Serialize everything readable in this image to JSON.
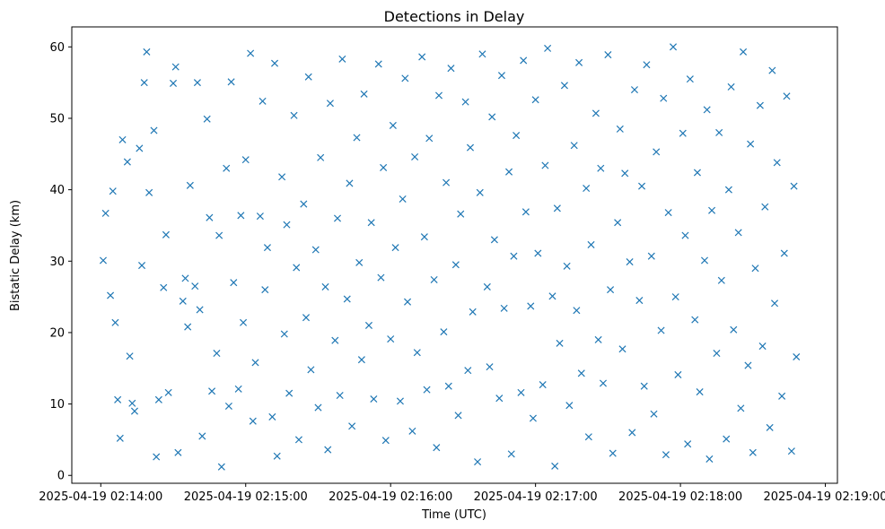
{
  "chart_data": {
    "type": "scatter",
    "title": "Detections in Delay",
    "xlabel": "Time (UTC)",
    "ylabel": "Bistatic Delay (km)",
    "x_ticks": [
      "2025-04-19 02:14:00",
      "2025-04-19 02:15:00",
      "2025-04-19 02:16:00",
      "2025-04-19 02:17:00",
      "2025-04-19 02:18:00",
      "2025-04-19 02:19:00"
    ],
    "y_ticks": [
      "0",
      "10",
      "20",
      "30",
      "40",
      "50",
      "60"
    ],
    "xlim": [
      "2025-04-19 02:13:48",
      "2025-04-19 02:19:05"
    ],
    "ylim": [
      -1.1,
      62.8
    ],
    "grid": false,
    "marker": "x",
    "color": "#1f77b4",
    "series": [
      {
        "points": [
          [
            "02:14:01",
            30.1
          ],
          [
            "02:14:02",
            36.7
          ],
          [
            "02:14:04",
            25.2
          ],
          [
            "02:14:05",
            39.8
          ],
          [
            "02:14:06",
            21.4
          ],
          [
            "02:14:07",
            10.6
          ],
          [
            "02:14:08",
            5.2
          ],
          [
            "02:14:09",
            47.0
          ],
          [
            "02:14:11",
            43.9
          ],
          [
            "02:14:12",
            16.7
          ],
          [
            "02:14:13",
            10.1
          ],
          [
            "02:14:14",
            9.0
          ],
          [
            "02:14:16",
            45.8
          ],
          [
            "02:14:17",
            29.4
          ],
          [
            "02:14:18",
            55.0
          ],
          [
            "02:14:19",
            59.3
          ],
          [
            "02:14:20",
            39.6
          ],
          [
            "02:14:22",
            48.3
          ],
          [
            "02:14:23",
            2.6
          ],
          [
            "02:14:24",
            10.6
          ],
          [
            "02:14:26",
            26.3
          ],
          [
            "02:14:27",
            33.7
          ],
          [
            "02:14:28",
            11.6
          ],
          [
            "02:14:30",
            54.9
          ],
          [
            "02:14:31",
            57.2
          ],
          [
            "02:14:32",
            3.2
          ],
          [
            "02:14:34",
            24.4
          ],
          [
            "02:14:35",
            27.6
          ],
          [
            "02:14:36",
            20.8
          ],
          [
            "02:14:37",
            40.6
          ],
          [
            "02:14:39",
            26.5
          ],
          [
            "02:14:40",
            55.0
          ],
          [
            "02:14:41",
            23.2
          ],
          [
            "02:14:42",
            5.5
          ],
          [
            "02:14:44",
            49.9
          ],
          [
            "02:14:45",
            36.1
          ],
          [
            "02:14:46",
            11.8
          ],
          [
            "02:14:48",
            17.1
          ],
          [
            "02:14:49",
            33.6
          ],
          [
            "02:14:50",
            1.2
          ],
          [
            "02:14:52",
            43.0
          ],
          [
            "02:14:53",
            9.7
          ],
          [
            "02:14:54",
            55.1
          ],
          [
            "02:14:55",
            27.0
          ],
          [
            "02:14:57",
            12.1
          ],
          [
            "02:14:58",
            36.4
          ],
          [
            "02:14:59",
            21.4
          ],
          [
            "02:15:00",
            44.2
          ],
          [
            "02:15:02",
            59.1
          ],
          [
            "02:15:03",
            7.6
          ],
          [
            "02:15:04",
            15.8
          ],
          [
            "02:15:06",
            36.3
          ],
          [
            "02:15:07",
            52.4
          ],
          [
            "02:15:08",
            26.0
          ],
          [
            "02:15:09",
            31.9
          ],
          [
            "02:15:11",
            8.2
          ],
          [
            "02:15:12",
            57.7
          ],
          [
            "02:15:13",
            2.7
          ],
          [
            "02:15:15",
            41.8
          ],
          [
            "02:15:16",
            19.8
          ],
          [
            "02:15:17",
            35.1
          ],
          [
            "02:15:18",
            11.5
          ],
          [
            "02:15:20",
            50.4
          ],
          [
            "02:15:21",
            29.1
          ],
          [
            "02:15:22",
            5.0
          ],
          [
            "02:15:24",
            38.0
          ],
          [
            "02:15:25",
            22.1
          ],
          [
            "02:15:26",
            55.8
          ],
          [
            "02:15:27",
            14.8
          ],
          [
            "02:15:29",
            31.6
          ],
          [
            "02:15:30",
            9.5
          ],
          [
            "02:15:31",
            44.5
          ],
          [
            "02:15:33",
            26.4
          ],
          [
            "02:15:34",
            3.6
          ],
          [
            "02:15:35",
            52.1
          ],
          [
            "02:15:37",
            18.9
          ],
          [
            "02:15:38",
            36.0
          ],
          [
            "02:15:39",
            11.2
          ],
          [
            "02:15:40",
            58.3
          ],
          [
            "02:15:42",
            24.7
          ],
          [
            "02:15:43",
            40.9
          ],
          [
            "02:15:44",
            6.9
          ],
          [
            "02:15:46",
            47.3
          ],
          [
            "02:15:47",
            29.8
          ],
          [
            "02:15:48",
            16.2
          ],
          [
            "02:15:49",
            53.4
          ],
          [
            "02:15:51",
            21.0
          ],
          [
            "02:15:52",
            35.4
          ],
          [
            "02:15:53",
            10.7
          ],
          [
            "02:15:55",
            57.6
          ],
          [
            "02:15:56",
            27.7
          ],
          [
            "02:15:57",
            43.1
          ],
          [
            "02:15:58",
            4.9
          ],
          [
            "02:16:00",
            19.1
          ],
          [
            "02:16:01",
            49.0
          ],
          [
            "02:16:02",
            31.9
          ],
          [
            "02:16:04",
            10.4
          ],
          [
            "02:16:05",
            38.7
          ],
          [
            "02:16:06",
            55.6
          ],
          [
            "02:16:07",
            24.3
          ],
          [
            "02:16:09",
            6.2
          ],
          [
            "02:16:10",
            44.6
          ],
          [
            "02:16:11",
            17.2
          ],
          [
            "02:16:13",
            58.6
          ],
          [
            "02:16:14",
            33.4
          ],
          [
            "02:16:15",
            12.0
          ],
          [
            "02:16:16",
            47.2
          ],
          [
            "02:16:18",
            27.4
          ],
          [
            "02:16:19",
            3.9
          ],
          [
            "02:16:20",
            53.2
          ],
          [
            "02:16:22",
            20.1
          ],
          [
            "02:16:23",
            41.0
          ],
          [
            "02:16:24",
            12.5
          ],
          [
            "02:16:25",
            57.0
          ],
          [
            "02:16:27",
            29.5
          ],
          [
            "02:16:28",
            8.4
          ],
          [
            "02:16:29",
            36.6
          ],
          [
            "02:16:31",
            52.3
          ],
          [
            "02:16:32",
            14.7
          ],
          [
            "02:16:33",
            45.9
          ],
          [
            "02:16:34",
            22.9
          ],
          [
            "02:16:36",
            1.9
          ],
          [
            "02:16:37",
            39.6
          ],
          [
            "02:16:38",
            59.0
          ],
          [
            "02:16:40",
            26.4
          ],
          [
            "02:16:41",
            15.2
          ],
          [
            "02:16:42",
            50.2
          ],
          [
            "02:16:43",
            33.0
          ],
          [
            "02:16:45",
            10.8
          ],
          [
            "02:16:46",
            56.0
          ],
          [
            "02:16:47",
            23.4
          ],
          [
            "02:16:49",
            42.5
          ],
          [
            "02:16:50",
            3.0
          ],
          [
            "02:16:51",
            30.7
          ],
          [
            "02:16:52",
            47.6
          ],
          [
            "02:16:54",
            11.6
          ],
          [
            "02:16:55",
            58.1
          ],
          [
            "02:16:56",
            36.9
          ],
          [
            "02:16:58",
            23.7
          ],
          [
            "02:16:59",
            8.0
          ],
          [
            "02:17:00",
            52.6
          ],
          [
            "02:17:01",
            31.1
          ],
          [
            "02:17:03",
            12.7
          ],
          [
            "02:17:04",
            43.4
          ],
          [
            "02:17:05",
            59.8
          ],
          [
            "02:17:07",
            25.1
          ],
          [
            "02:17:08",
            1.3
          ],
          [
            "02:17:09",
            37.4
          ],
          [
            "02:17:10",
            18.5
          ],
          [
            "02:17:12",
            54.6
          ],
          [
            "02:17:13",
            29.3
          ],
          [
            "02:17:14",
            9.8
          ],
          [
            "02:17:16",
            46.2
          ],
          [
            "02:17:17",
            23.1
          ],
          [
            "02:17:18",
            57.8
          ],
          [
            "02:17:19",
            14.3
          ],
          [
            "02:17:21",
            40.2
          ],
          [
            "02:17:22",
            5.4
          ],
          [
            "02:17:23",
            32.3
          ],
          [
            "02:17:25",
            50.7
          ],
          [
            "02:17:26",
            19.0
          ],
          [
            "02:17:27",
            43.0
          ],
          [
            "02:17:28",
            12.9
          ],
          [
            "02:17:30",
            58.9
          ],
          [
            "02:17:31",
            26.0
          ],
          [
            "02:17:32",
            3.1
          ],
          [
            "02:17:34",
            35.4
          ],
          [
            "02:17:35",
            48.5
          ],
          [
            "02:17:36",
            17.7
          ],
          [
            "02:17:37",
            42.3
          ],
          [
            "02:17:39",
            29.9
          ],
          [
            "02:17:40",
            6.0
          ],
          [
            "02:17:41",
            54.0
          ],
          [
            "02:17:43",
            24.5
          ],
          [
            "02:17:44",
            40.5
          ],
          [
            "02:17:45",
            12.5
          ],
          [
            "02:17:46",
            57.5
          ],
          [
            "02:17:48",
            30.7
          ],
          [
            "02:17:49",
            8.6
          ],
          [
            "02:17:50",
            45.3
          ],
          [
            "02:17:52",
            20.3
          ],
          [
            "02:17:53",
            52.8
          ],
          [
            "02:17:54",
            2.9
          ],
          [
            "02:17:55",
            36.8
          ],
          [
            "02:17:57",
            60.0
          ],
          [
            "02:17:58",
            25.0
          ],
          [
            "02:17:59",
            14.1
          ],
          [
            "02:18:01",
            47.9
          ],
          [
            "02:18:02",
            33.6
          ],
          [
            "02:18:03",
            4.4
          ],
          [
            "02:18:04",
            55.5
          ],
          [
            "02:18:06",
            21.8
          ],
          [
            "02:18:07",
            42.4
          ],
          [
            "02:18:08",
            11.7
          ],
          [
            "02:18:10",
            30.1
          ],
          [
            "02:18:11",
            51.2
          ],
          [
            "02:18:12",
            2.3
          ],
          [
            "02:18:13",
            37.1
          ],
          [
            "02:18:15",
            17.1
          ],
          [
            "02:18:16",
            48.0
          ],
          [
            "02:18:17",
            27.3
          ],
          [
            "02:18:19",
            5.1
          ],
          [
            "02:18:20",
            40.0
          ],
          [
            "02:18:21",
            54.4
          ],
          [
            "02:18:22",
            20.4
          ],
          [
            "02:18:24",
            34.0
          ],
          [
            "02:18:25",
            9.4
          ],
          [
            "02:18:26",
            59.3
          ],
          [
            "02:18:28",
            15.4
          ],
          [
            "02:18:29",
            46.4
          ],
          [
            "02:18:30",
            3.2
          ],
          [
            "02:18:31",
            29.0
          ],
          [
            "02:18:33",
            51.8
          ],
          [
            "02:18:34",
            18.1
          ],
          [
            "02:18:35",
            37.6
          ],
          [
            "02:18:37",
            6.7
          ],
          [
            "02:18:38",
            56.7
          ],
          [
            "02:18:39",
            24.1
          ],
          [
            "02:18:40",
            43.8
          ],
          [
            "02:18:42",
            11.1
          ],
          [
            "02:18:43",
            31.1
          ],
          [
            "02:18:44",
            53.1
          ],
          [
            "02:18:46",
            3.4
          ],
          [
            "02:18:47",
            40.5
          ],
          [
            "02:18:48",
            16.6
          ]
        ]
      }
    ]
  }
}
